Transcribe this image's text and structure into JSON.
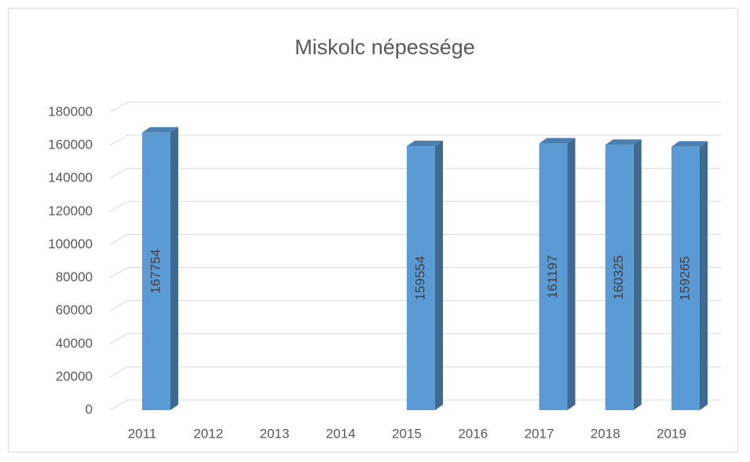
{
  "chart_data": {
    "type": "bar3d",
    "title": "Miskolc népessége",
    "categories": [
      "2011",
      "2012",
      "2013",
      "2014",
      "2015",
      "2016",
      "2017",
      "2018",
      "2019"
    ],
    "values": [
      167754,
      null,
      null,
      null,
      159554,
      null,
      161197,
      160325,
      159265
    ],
    "color": "#5b9bd5",
    "ylim": [
      0,
      180000
    ],
    "yticks": [
      0,
      20000,
      40000,
      60000,
      80000,
      100000,
      120000,
      140000,
      160000,
      180000
    ],
    "grid": true
  }
}
